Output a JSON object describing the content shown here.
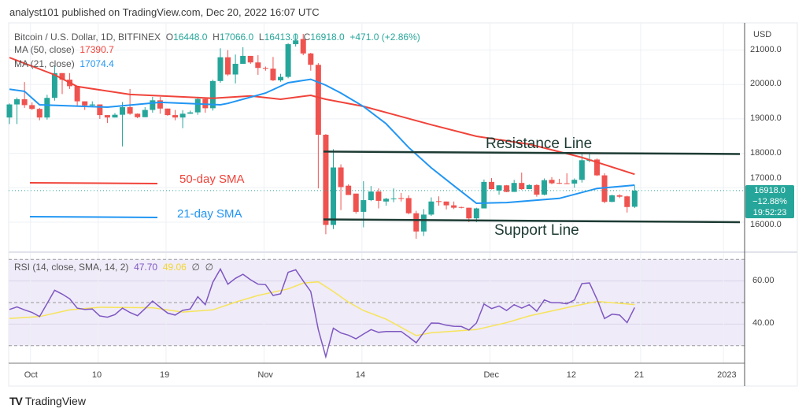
{
  "publish_line": "analyst101 published on TradingView.com, Dec 20, 2022 16:07 UTC",
  "legend": {
    "symbol": "Bitcoin / U.S. Dollar, 1D, BITFINEX",
    "o_label": "O",
    "o": "16448.0",
    "h_label": "H",
    "h": "17066.0",
    "l_label": "L",
    "l": "16413.0",
    "c_label": "C",
    "c": "16918.0",
    "change": "+471.0 (+2.86%)",
    "ma50_label": "MA (50, close)",
    "ma50": "17390.7",
    "ma21_label": "MA (21, close)",
    "ma21": "17074.4",
    "rsi_label": "RSI (14, close, SMA, 14, 2)",
    "rsi": "47.70",
    "rsi_ma": "49.06",
    "na1": "∅",
    "na2": "∅"
  },
  "annotations": {
    "resistance": "Resistance Line",
    "support": "Support Line",
    "sma50": "50-day SMA",
    "sma21": "21-day SMA"
  },
  "price_box": {
    "price": "16918.0",
    "change_pct": "−12.88%",
    "countdown": "19:52:23"
  },
  "brand": "TradingView",
  "colors": {
    "up": "#26a69a",
    "down": "#ef5350",
    "ma50": "#f0433a",
    "ma21": "#2196f3",
    "rsi": "#7e57c2",
    "rsi_ma": "#f7e45a",
    "trendline": "#1d3b33"
  },
  "chart_data": {
    "type": "candlestick",
    "price_axis": {
      "unit": "USD",
      "ticks": [
        "21000.0",
        "20000.0",
        "19000.0",
        "18000.0",
        "17000.0",
        "16000.0"
      ],
      "tick_values": [
        21000,
        20000,
        19000,
        18000,
        17000,
        16000
      ]
    },
    "x_ticks": [
      {
        "date": "2022-10-01",
        "label": "Oct"
      },
      {
        "date": "2022-10-10",
        "label": "10"
      },
      {
        "date": "2022-10-19",
        "label": "19"
      },
      {
        "date": "2022-11-01",
        "label": "Nov"
      },
      {
        "date": "2022-11-14",
        "label": "14"
      },
      {
        "date": "2022-12-01",
        "label": "Dec"
      },
      {
        "date": "2022-12-12",
        "label": "12"
      },
      {
        "date": "2022-12-21",
        "label": "21"
      },
      {
        "date": "2023-01-01",
        "label": "2023"
      }
    ],
    "dates": [
      "2022-09-28",
      "2022-09-29",
      "2022-09-30",
      "2022-10-01",
      "2022-10-02",
      "2022-10-03",
      "2022-10-04",
      "2022-10-05",
      "2022-10-06",
      "2022-10-07",
      "2022-10-08",
      "2022-10-09",
      "2022-10-10",
      "2022-10-11",
      "2022-10-12",
      "2022-10-13",
      "2022-10-14",
      "2022-10-15",
      "2022-10-16",
      "2022-10-17",
      "2022-10-18",
      "2022-10-19",
      "2022-10-20",
      "2022-10-21",
      "2022-10-22",
      "2022-10-23",
      "2022-10-24",
      "2022-10-25",
      "2022-10-26",
      "2022-10-27",
      "2022-10-28",
      "2022-10-29",
      "2022-10-30",
      "2022-10-31",
      "2022-11-01",
      "2022-11-02",
      "2022-11-03",
      "2022-11-04",
      "2022-11-05",
      "2022-11-06",
      "2022-11-07",
      "2022-11-08",
      "2022-11-09",
      "2022-11-10",
      "2022-11-11",
      "2022-11-12",
      "2022-11-13",
      "2022-11-14",
      "2022-11-15",
      "2022-11-16",
      "2022-11-17",
      "2022-11-18",
      "2022-11-19",
      "2022-11-20",
      "2022-11-21",
      "2022-11-22",
      "2022-11-23",
      "2022-11-24",
      "2022-11-25",
      "2022-11-26",
      "2022-11-27",
      "2022-11-28",
      "2022-11-29",
      "2022-11-30",
      "2022-12-01",
      "2022-12-02",
      "2022-12-03",
      "2022-12-04",
      "2022-12-05",
      "2022-12-06",
      "2022-12-07",
      "2022-12-08",
      "2022-12-09",
      "2022-12-10",
      "2022-12-11",
      "2022-12-12",
      "2022-12-13",
      "2022-12-14",
      "2022-12-15",
      "2022-12-16",
      "2022-12-17",
      "2022-12-18",
      "2022-12-19",
      "2022-12-20"
    ],
    "ohlc": [
      [
        19040,
        19450,
        18850,
        19420
      ],
      [
        19420,
        19620,
        18850,
        19570
      ],
      [
        19570,
        20070,
        19320,
        19400
      ],
      [
        19400,
        19480,
        19260,
        19290
      ],
      [
        19290,
        19320,
        18960,
        19040
      ],
      [
        19040,
        19700,
        18980,
        19610
      ],
      [
        19610,
        20560,
        19530,
        20330
      ],
      [
        20330,
        20330,
        19720,
        20140
      ],
      [
        20140,
        20330,
        19870,
        19950
      ],
      [
        19950,
        19950,
        19370,
        19510
      ],
      [
        19510,
        19510,
        19260,
        19390
      ],
      [
        19390,
        19510,
        19340,
        19420
      ],
      [
        19420,
        19420,
        19000,
        19110
      ],
      [
        19110,
        19110,
        18880,
        19040
      ],
      [
        19040,
        19170,
        19040,
        19120
      ],
      [
        19120,
        19490,
        18200,
        19340
      ],
      [
        19340,
        19870,
        19120,
        19150
      ],
      [
        19150,
        19160,
        19020,
        19050
      ],
      [
        19050,
        19340,
        19050,
        19260
      ],
      [
        19260,
        19640,
        19180,
        19540
      ],
      [
        19540,
        19640,
        19150,
        19300
      ],
      [
        19300,
        19300,
        19090,
        19110
      ],
      [
        19110,
        19260,
        18960,
        19040
      ],
      [
        19040,
        19250,
        18730,
        19150
      ],
      [
        19150,
        19240,
        19150,
        19190
      ],
      [
        19190,
        19640,
        19120,
        19580
      ],
      [
        19580,
        19600,
        19180,
        19310
      ],
      [
        19310,
        20140,
        19240,
        20100
      ],
      [
        20100,
        21050,
        20050,
        20790
      ],
      [
        20790,
        21000,
        20250,
        20290
      ],
      [
        20290,
        20870,
        20030,
        20600
      ],
      [
        20600,
        21080,
        20600,
        20830
      ],
      [
        20830,
        20830,
        20600,
        20640
      ],
      [
        20640,
        20850,
        20280,
        20480
      ],
      [
        20480,
        20520,
        20400,
        20460
      ],
      [
        20460,
        20800,
        20100,
        20120
      ],
      [
        20120,
        20310,
        20080,
        20220
      ],
      [
        20220,
        21200,
        20180,
        21170
      ],
      [
        21170,
        21470,
        21100,
        21280
      ],
      [
        21320,
        21470,
        20850,
        20900
      ],
      [
        20900,
        20920,
        20400,
        20570
      ],
      [
        20570,
        20620,
        16980,
        18540
      ],
      [
        18540,
        18560,
        15650,
        15920
      ],
      [
        15920,
        18120,
        15800,
        17590
      ],
      [
        17590,
        17680,
        16350,
        17020
      ],
      [
        17060,
        17100,
        16790,
        16790
      ],
      [
        16830,
        16830,
        16250,
        16300
      ],
      [
        16300,
        17190,
        15850,
        16640
      ],
      [
        16640,
        17050,
        16610,
        16890
      ],
      [
        16890,
        16980,
        16400,
        16620
      ],
      [
        16600,
        16710,
        16480,
        16680
      ],
      [
        16680,
        16980,
        16580,
        16690
      ],
      [
        16700,
        16850,
        16600,
        16690
      ],
      [
        16700,
        16780,
        16230,
        16260
      ],
      [
        16260,
        16330,
        15520,
        15730
      ],
      [
        15730,
        16380,
        15600,
        16220
      ],
      [
        16220,
        16720,
        16180,
        16600
      ],
      [
        16610,
        16750,
        16480,
        16600
      ],
      [
        16600,
        16600,
        16370,
        16490
      ],
      [
        16490,
        16600,
        16380,
        16420
      ],
      [
        16440,
        16450,
        16400,
        16420
      ],
      [
        16420,
        16420,
        16000,
        16110
      ],
      [
        16110,
        16420,
        16000,
        16400
      ],
      [
        16400,
        17240,
        16400,
        17170
      ],
      [
        17170,
        17280,
        16950,
        16960
      ],
      [
        16920,
        17080,
        16800,
        17070
      ],
      [
        17070,
        17080,
        16870,
        16880
      ],
      [
        16880,
        17230,
        16880,
        17140
      ],
      [
        17140,
        17440,
        16940,
        16960
      ],
      [
        16960,
        17100,
        16960,
        17080
      ],
      [
        17080,
        17100,
        16740,
        16800
      ],
      [
        16800,
        17270,
        16780,
        17220
      ],
      [
        17230,
        17310,
        17100,
        17130
      ],
      [
        17140,
        17260,
        17110,
        17120
      ],
      [
        17130,
        17420,
        17110,
        17120
      ],
      [
        17120,
        17270,
        17000,
        17230
      ],
      [
        17230,
        18000,
        17150,
        17800
      ],
      [
        17780,
        18000,
        17740,
        17820
      ],
      [
        17820,
        17850,
        17340,
        17360
      ],
      [
        17360,
        17420,
        16550,
        16590
      ],
      [
        16590,
        16800,
        16580,
        16780
      ],
      [
        16780,
        16810,
        16700,
        16740
      ],
      [
        16750,
        16770,
        16280,
        16440
      ],
      [
        16448,
        17066,
        16413,
        16918
      ]
    ],
    "ma50": [
      [
        "2022-09-28",
        20780
      ],
      [
        "2022-10-04",
        20280
      ],
      [
        "2022-10-07",
        19940
      ],
      [
        "2022-10-14",
        19710
      ],
      [
        "2022-10-25",
        19600
      ],
      [
        "2022-10-30",
        19668
      ],
      [
        "2022-11-03",
        19570
      ],
      [
        "2022-11-07",
        19684
      ],
      [
        "2022-11-09",
        19570
      ],
      [
        "2022-11-14",
        19364
      ],
      [
        "2022-11-23",
        18830
      ],
      [
        "2022-11-29",
        18494
      ],
      [
        "2022-12-06",
        18265
      ],
      [
        "2022-12-13",
        17880
      ],
      [
        "2022-12-20",
        17390.7
      ]
    ],
    "ma21": [
      [
        "2022-09-28",
        19860
      ],
      [
        "2022-09-30",
        19800
      ],
      [
        "2022-10-02",
        19410
      ],
      [
        "2022-10-11",
        19340
      ],
      [
        "2022-10-18",
        19480
      ],
      [
        "2022-10-26",
        19410
      ],
      [
        "2022-10-27",
        19450
      ],
      [
        "2022-11-01",
        19750
      ],
      [
        "2022-11-04",
        20050
      ],
      [
        "2022-11-07",
        20150
      ],
      [
        "2022-11-09",
        19980
      ],
      [
        "2022-11-11",
        19750
      ],
      [
        "2022-11-14",
        19360
      ],
      [
        "2022-11-17",
        18860
      ],
      [
        "2022-11-20",
        18170
      ],
      [
        "2022-11-23",
        17580
      ],
      [
        "2022-11-26",
        17060
      ],
      [
        "2022-11-29",
        16550
      ],
      [
        "2022-12-03",
        16570
      ],
      [
        "2022-12-10",
        16690
      ],
      [
        "2022-12-15",
        16980
      ],
      [
        "2022-12-20",
        17074.4
      ]
    ],
    "resistance_line": [
      [
        "2022-11-09",
        18050
      ],
      [
        "2023-01-01",
        17980
      ]
    ],
    "support_line": [
      [
        "2022-11-09",
        16080
      ],
      [
        "2023-01-01",
        16000
      ]
    ],
    "rsi": {
      "ticks": [
        "60.00",
        "40.00"
      ],
      "tick_values": [
        60,
        40
      ],
      "bands": [
        30,
        50,
        70
      ],
      "range": [
        20,
        72
      ],
      "values": [
        46.8,
        48.0,
        46.6,
        45.4,
        43.5,
        49.6,
        55.7,
        53.9,
        51.7,
        47.4,
        46.8,
        47.0,
        43.8,
        43.2,
        44.4,
        47.4,
        45.4,
        43.9,
        47.2,
        50.7,
        47.8,
        45.1,
        44.2,
        46.4,
        47.0,
        52.7,
        49.0,
        59.4,
        65.5,
        58.5,
        61.2,
        63.1,
        60.6,
        58.5,
        58.3,
        53.3,
        54.1,
        64.0,
        65.2,
        60.0,
        55.1,
        37.5,
        24.9,
        38.1,
        35.9,
        34.9,
        33.2,
        35.4,
        37.5,
        36.2,
        36.6,
        36.6,
        36.6,
        34.1,
        31.4,
        36.2,
        40.5,
        40.4,
        39.5,
        39.0,
        38.9,
        37.3,
        40.5,
        49.3,
        47.2,
        48.4,
        46.3,
        49.0,
        47.4,
        49.0,
        46.0,
        51.2,
        49.9,
        49.9,
        49.4,
        51.2,
        58.8,
        59.1,
        51.5,
        42.6,
        44.6,
        44.2,
        40.7,
        47.7
      ],
      "ma": [
        [
          "2022-09-28",
          42.6
        ],
        [
          "2022-10-02",
          43.5
        ],
        [
          "2022-10-06",
          46.6
        ],
        [
          "2022-10-10",
          47.8
        ],
        [
          "2022-10-17",
          47.6
        ],
        [
          "2022-10-21",
          45.6
        ],
        [
          "2022-10-25",
          46.6
        ],
        [
          "2022-10-28",
          50.2
        ],
        [
          "2022-10-31",
          53.3
        ],
        [
          "2022-11-04",
          56.3
        ],
        [
          "2022-11-06",
          59.0
        ],
        [
          "2022-11-08",
          59.6
        ],
        [
          "2022-11-10",
          55.1
        ],
        [
          "2022-11-12",
          50.2
        ],
        [
          "2022-11-14",
          46.3
        ],
        [
          "2022-11-17",
          42.3
        ],
        [
          "2022-11-21",
          34.7
        ],
        [
          "2022-11-23",
          36.0
        ],
        [
          "2022-11-29",
          37.5
        ],
        [
          "2022-12-03",
          40.7
        ],
        [
          "2022-12-06",
          43.8
        ],
        [
          "2022-12-12",
          48.4
        ],
        [
          "2022-12-15",
          50.5
        ],
        [
          "2022-12-20",
          49.06
        ]
      ]
    }
  }
}
